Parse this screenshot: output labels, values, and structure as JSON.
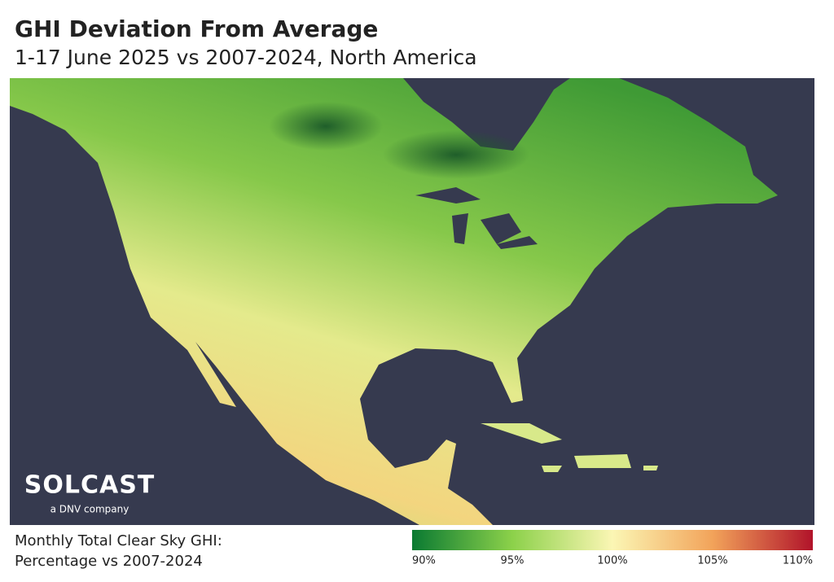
{
  "header": {
    "title": "GHI Deviation From Average",
    "subtitle": "1-17 June 2025 vs 2007-2024, North America"
  },
  "logo": {
    "name": "SOLCAST",
    "tagline": "a DNV company"
  },
  "legend": {
    "title_lines": [
      "Monthly Total Clear Sky GHI:",
      "Percentage vs 2007-2024"
    ],
    "range": [
      90,
      110
    ],
    "colors": [
      "#0a7a32",
      "#8cd14a",
      "#fbf6b4",
      "#f2a35a",
      "#b1132a"
    ],
    "ticks": [
      {
        "value": 90,
        "label": "90%"
      },
      {
        "value": 95,
        "label": "95%"
      },
      {
        "value": 100,
        "label": "100%"
      },
      {
        "value": 105,
        "label": "105%"
      },
      {
        "value": 110,
        "label": "110%"
      }
    ]
  }
}
